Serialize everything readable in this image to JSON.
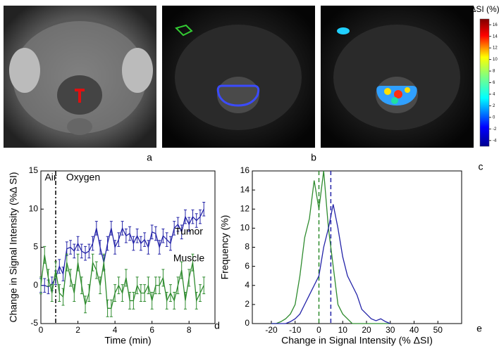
{
  "panel_labels": [
    "a",
    "b",
    "c",
    "d",
    "e"
  ],
  "colorbar": {
    "title": "ΔSI (%)",
    "ylim": [
      -5,
      17
    ],
    "ticks": [
      16,
      14,
      12,
      10,
      8,
      6,
      4,
      2,
      0,
      -2,
      -4
    ]
  },
  "chart_data": [
    {
      "type": "line",
      "xlabel": "Time (min)",
      "ylabel": "Change in Signal Intensity (%Δ SI)",
      "x": [
        0,
        0.2,
        0.4,
        0.6,
        0.8,
        1,
        1.2,
        1.4,
        1.6,
        1.8,
        2,
        2.2,
        2.4,
        2.6,
        2.8,
        3,
        3.2,
        3.4,
        3.6,
        3.8,
        4,
        4.2,
        4.4,
        4.6,
        4.8,
        5,
        5.2,
        5.4,
        5.6,
        5.8,
        6,
        6.2,
        6.4,
        6.6,
        6.8,
        7,
        7.2,
        7.4,
        7.6,
        7.8,
        8,
        8.2,
        8.4,
        8.6,
        8.8
      ],
      "series": [
        {
          "name": "Tumor",
          "color": "#2323a8",
          "error": 0.9,
          "values": [
            0,
            0,
            -0.2,
            0.2,
            1,
            2.5,
            1.5,
            4.8,
            5,
            4.5,
            5.5,
            4.5,
            4.2,
            4.5,
            5.5,
            7.5,
            5,
            3,
            5.5,
            7.5,
            5,
            6,
            7.5,
            6.5,
            6.8,
            5.5,
            6.5,
            5.5,
            6,
            5,
            7,
            6.8,
            5,
            6.5,
            6,
            5.5,
            7.5,
            8,
            7,
            9,
            8,
            9,
            8.5,
            9,
            10
          ]
        },
        {
          "name": "Muscle",
          "color": "#2e8b2e",
          "error": 1.1,
          "values": [
            0,
            4,
            1,
            -1,
            2,
            -1,
            -1.5,
            3,
            1,
            -1,
            3,
            0,
            -2.5,
            -1,
            3,
            2,
            0,
            3,
            -3,
            -3,
            -1,
            0,
            -1,
            1,
            -2,
            -2,
            0,
            -1,
            -1,
            0,
            -2,
            0,
            0,
            1,
            -2,
            -1,
            -2,
            0,
            2,
            -2,
            1,
            3,
            -2,
            -1,
            0
          ]
        }
      ],
      "vlines": [
        {
          "value": 0.8,
          "color": "#000000",
          "dash": "6 3 2 3"
        }
      ],
      "annotations": [
        {
          "text": "Air"
        },
        {
          "text": "Oxygen"
        },
        {
          "text": "Tumor"
        },
        {
          "text": "Muscle"
        }
      ],
      "xlim": [
        0,
        9.4
      ],
      "xticks": [
        0,
        2,
        4,
        6,
        8
      ],
      "ylim": [
        -5,
        15
      ],
      "yticks": [
        -5,
        0,
        5,
        10,
        15
      ]
    },
    {
      "type": "line",
      "xlabel": "Change in Signal Intensity (% ΔSI)",
      "ylabel": "Frequency (%)",
      "x": [
        -20,
        -18,
        -16,
        -14,
        -12,
        -10,
        -8,
        -6,
        -4,
        -2,
        0,
        2,
        4,
        6,
        8,
        10,
        12,
        14,
        16,
        18,
        20,
        22,
        24,
        26,
        28,
        30
      ],
      "series": [
        {
          "name": "Muscle",
          "color": "#2e8b2e",
          "values": [
            0,
            0,
            0.2,
            0.5,
            1,
            2,
            5,
            9,
            11,
            15,
            12,
            16,
            10,
            6,
            2,
            1,
            0.5,
            0,
            0,
            0,
            0,
            0,
            0,
            0,
            0,
            0
          ]
        },
        {
          "name": "Tumor",
          "color": "#2323a8",
          "values": [
            0,
            0,
            0,
            0,
            0.2,
            0.5,
            1,
            2,
            3,
            4,
            5,
            8,
            10,
            12.5,
            10,
            7,
            5,
            4,
            3,
            1.5,
            1,
            0.5,
            0.3,
            0.5,
            0.2,
            0
          ]
        }
      ],
      "vlines": [
        {
          "value": 0,
          "color": "#2e8b2e",
          "dash": "6 4"
        },
        {
          "value": 5,
          "color": "#2323a8",
          "dash": "6 4"
        }
      ],
      "xlim": [
        -28,
        60
      ],
      "xticks": [
        -20,
        -10,
        0,
        10,
        20,
        30,
        40,
        50
      ],
      "ylim": [
        0,
        16
      ],
      "yticks": [
        0,
        2,
        4,
        6,
        8,
        10,
        12,
        14,
        16
      ]
    }
  ]
}
